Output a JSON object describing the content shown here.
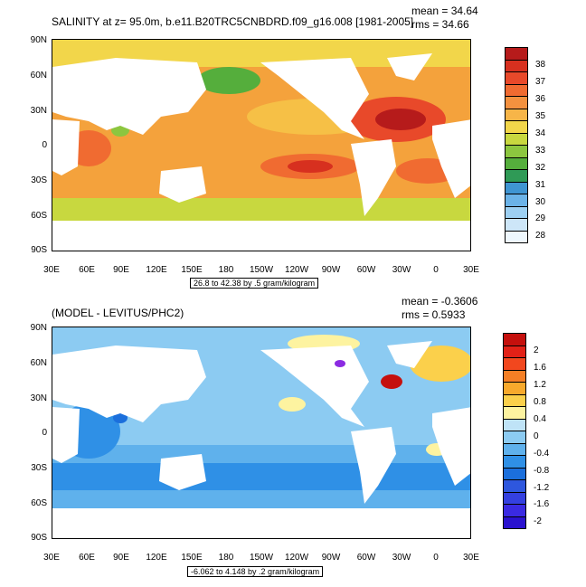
{
  "panel1": {
    "title": "SALINITY at z=  95.0m, b.e11.B20TRC5CNBDRD.f09_g16.008 [1981-2005]",
    "mean": "mean = 34.64",
    "rms": "rms = 34.66",
    "range_label": "26.8 to 42.38 by .5 gram/kilogram",
    "lat_ticks": [
      "90N",
      "60N",
      "30N",
      "0",
      "30S",
      "60S",
      "90S"
    ],
    "lon_ticks": [
      "30E",
      "60E",
      "90E",
      "120E",
      "150E",
      "180",
      "150W",
      "120W",
      "90W",
      "60W",
      "30W",
      "0",
      "30E"
    ],
    "colorbar": {
      "labels": [
        "38",
        "37",
        "36",
        "35",
        "34",
        "33",
        "32",
        "31",
        "30",
        "29",
        "28"
      ],
      "colors": [
        "#b61b1b",
        "#d7301f",
        "#e8492a",
        "#f06b31",
        "#f4913f",
        "#f7b548",
        "#f2d64a",
        "#c8d83f",
        "#8cc63f",
        "#55ae3c",
        "#2f9a56",
        "#3f95d2",
        "#6bb3e8",
        "#9dd0f2",
        "#cde6f8",
        "#eef7fd"
      ]
    },
    "colors": {
      "ocean": "#f6c046",
      "land": "#ffffff"
    }
  },
  "panel2": {
    "title": "(MODEL - LEVITUS/PHC2)",
    "mean": "mean = -0.3606",
    "rms": "rms = 0.5933",
    "range_label": "-6.062 to 4.148 by .2 gram/kilogram",
    "lat_ticks": [
      "90N",
      "60N",
      "30N",
      "0",
      "30S",
      "60S",
      "90S"
    ],
    "lon_ticks": [
      "30E",
      "60E",
      "90E",
      "120E",
      "150E",
      "180",
      "150W",
      "120W",
      "90W",
      "60W",
      "30W",
      "0",
      "30E"
    ],
    "colorbar": {
      "labels": [
        "2",
        "1.6",
        "1.2",
        "0.8",
        "0.4",
        "0",
        "-0.4",
        "-0.8",
        "-1.2",
        "-1.6",
        "-2"
      ],
      "colors": [
        "#c5100d",
        "#e22117",
        "#f2471e",
        "#f57f25",
        "#f8a92c",
        "#fbd04b",
        "#fdf3a0",
        "#bfe3f7",
        "#8ccbf2",
        "#5fb1ec",
        "#2f90e6",
        "#1b6fdc",
        "#2e57de",
        "#3440e0",
        "#3a2ae2",
        "#2a12cf"
      ]
    },
    "colors": {
      "ocean": "#8fcbf0",
      "land": "#ffffff"
    }
  }
}
